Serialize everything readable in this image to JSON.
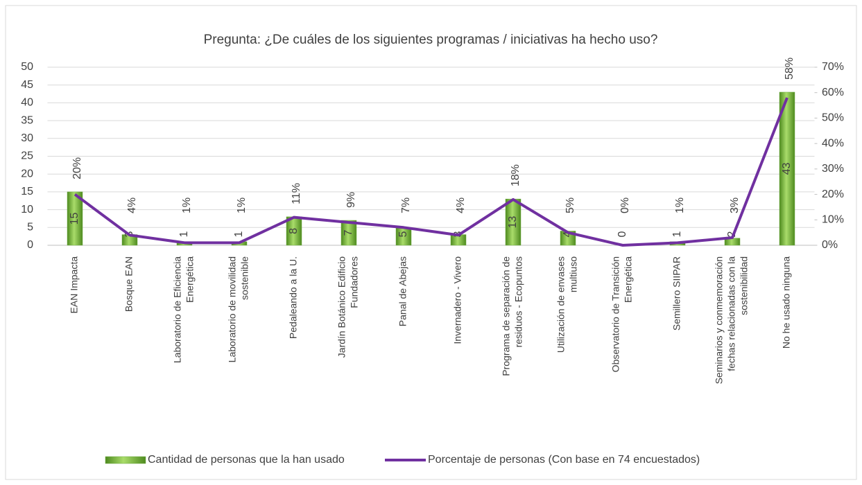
{
  "chart_data": {
    "type": "bar_line",
    "title": "Pregunta: ¿De cuáles de los siguientes programas / iniciativas ha hecho uso?",
    "categories": [
      [
        "EAN Impacta"
      ],
      [
        "Bosque EAN"
      ],
      [
        "Laboratorio de Eficiencia",
        "Energética"
      ],
      [
        "Laboratorio de movilidad",
        "sostenible"
      ],
      [
        "Pedaleando a la U."
      ],
      [
        "Jardín Botánico Edificio",
        "Fundadores"
      ],
      [
        "Panal de Abejas"
      ],
      [
        "Invernadero - Vivero"
      ],
      [
        "Programa de separación de",
        "residuos - Ecopuntos"
      ],
      [
        "Utilización de envases",
        "multiuso"
      ],
      [
        "Observatorio de Transición",
        "Energética"
      ],
      [
        "Semillero SIIPAR"
      ],
      [
        "Seminarios y conmemoración",
        "fechas relacionadas con la",
        "sostenibilidad"
      ],
      [
        "No he usado ninguna"
      ]
    ],
    "series": [
      {
        "name": "Cantidad de personas que la han usado",
        "type": "bar",
        "color": "#70ad47",
        "values": [
          15,
          3,
          1,
          1,
          8,
          7,
          5,
          3,
          13,
          4,
          0,
          1,
          2,
          43
        ]
      },
      {
        "name": "Porcentaje de personas (Con base en 74 encuestados)",
        "type": "line",
        "axis": "y2",
        "color": "#7030a0",
        "values": [
          20,
          4,
          1,
          1,
          11,
          9,
          7,
          4,
          18,
          5,
          0,
          1,
          3,
          58
        ],
        "value_labels": [
          "20%",
          "4%",
          "1%",
          "1%",
          "11%",
          "9%",
          "7%",
          "4%",
          "18%",
          "5%",
          "0%",
          "1%",
          "3%",
          "58%"
        ]
      }
    ],
    "ylim": [
      0,
      50
    ],
    "yticks": [
      0,
      5,
      10,
      15,
      20,
      25,
      30,
      35,
      40,
      45,
      50
    ],
    "y2lim": [
      0,
      70
    ],
    "y2ticks": [
      {
        "value": 0,
        "label": "0%"
      },
      {
        "value": 10,
        "label": "10%"
      },
      {
        "value": 20,
        "label": "20%"
      },
      {
        "value": 30,
        "label": "30%"
      },
      {
        "value": 40,
        "label": "40%"
      },
      {
        "value": 50,
        "label": "50%"
      },
      {
        "value": 60,
        "label": "60%"
      },
      {
        "value": 70,
        "label": "70%"
      }
    ],
    "grid": true,
    "legend": "bottom"
  }
}
